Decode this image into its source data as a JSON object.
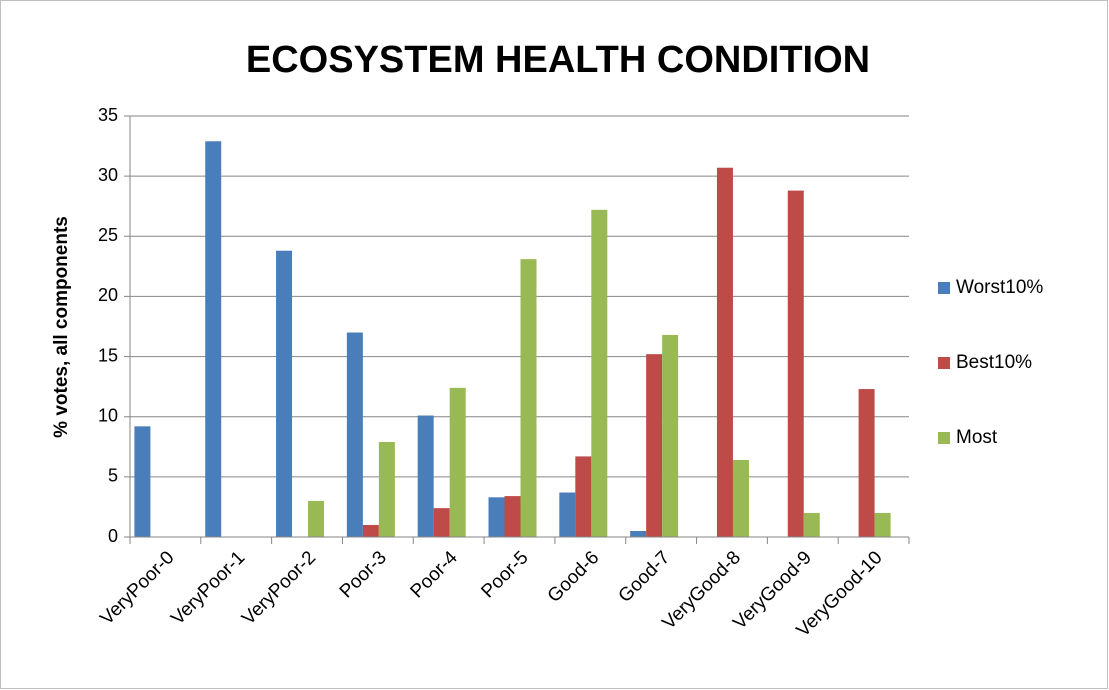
{
  "chart_data": {
    "type": "bar",
    "title": "ECOSYSTEM HEALTH CONDITION",
    "y_label": "% votes, all components",
    "categories": [
      "VeryPoor-0",
      "VeryPoor-1",
      "VeryPoor-2",
      "Poor-3",
      "Poor-4",
      "Poor-5",
      "Good-6",
      "Good-7",
      "VeryGood-8",
      "VeryGood-9",
      "VeryGood-10"
    ],
    "series": [
      {
        "name": "Worst10%",
        "color": "#4a7ebb",
        "values": [
          9.2,
          32.9,
          23.8,
          17.0,
          10.1,
          3.3,
          3.7,
          0.5,
          0,
          0,
          0
        ]
      },
      {
        "name": "Best10%",
        "color": "#be4b48",
        "values": [
          0,
          0,
          0,
          1.0,
          2.4,
          3.4,
          6.7,
          15.2,
          30.7,
          28.8,
          12.3
        ]
      },
      {
        "name": "Most",
        "color": "#98b954",
        "values": [
          0,
          0,
          3.0,
          7.9,
          12.4,
          23.1,
          27.2,
          16.8,
          6.4,
          2.0,
          2.0
        ]
      }
    ],
    "ylim": [
      0,
      35
    ],
    "yticks": [
      0,
      5,
      10,
      15,
      20,
      25,
      30,
      35
    ],
    "grid": true,
    "legend": "right"
  }
}
